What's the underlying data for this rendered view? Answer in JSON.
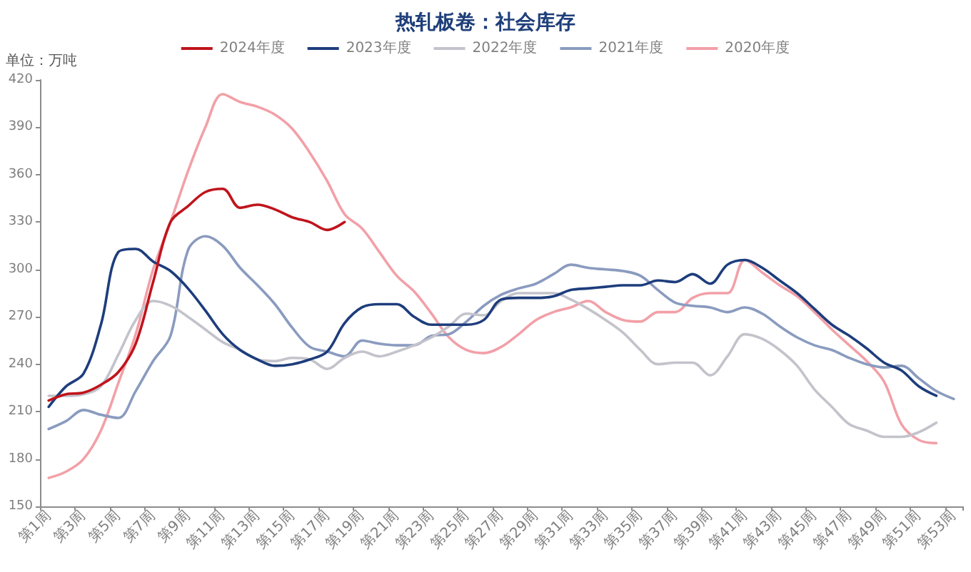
{
  "chart_data": {
    "type": "line",
    "title": "热轧板卷：社会库存",
    "ylabel": "单位：万吨",
    "categories": [
      "第1周",
      null,
      "第3周",
      null,
      "第5周",
      null,
      "第7周",
      null,
      "第9周",
      null,
      "第11周",
      null,
      "第13周",
      null,
      "第15周",
      null,
      "第17周",
      null,
      "第19周",
      null,
      "第21周",
      null,
      "第23周",
      null,
      "第25周",
      null,
      "第27周",
      null,
      "第29周",
      null,
      "第31周",
      null,
      "第33周",
      null,
      "第35周",
      null,
      "第37周",
      null,
      "第39周",
      null,
      "第41周",
      null,
      "第43周",
      null,
      "第45周",
      null,
      "第47周",
      null,
      "第49周",
      null,
      "第51周",
      null,
      "第53周"
    ],
    "series": [
      {
        "name": "2024年度",
        "color": "#c0141c",
        "values": [
          217,
          221,
          222,
          227,
          235,
          253,
          292,
          330,
          340,
          349,
          351,
          339,
          341,
          338,
          333,
          330,
          325,
          330,
          null,
          null,
          null,
          null,
          null,
          null,
          null,
          null,
          null,
          null,
          null,
          null,
          null,
          null,
          null,
          null,
          null,
          null,
          null,
          null,
          null,
          null,
          null,
          null,
          null,
          null,
          null,
          null,
          null,
          null,
          null,
          null,
          null,
          null,
          null
        ]
      },
      {
        "name": "2023年度",
        "color": "#1d3d7c",
        "values": [
          213,
          226,
          234,
          265,
          311,
          313,
          305,
          299,
          288,
          274,
          259,
          249,
          243,
          239,
          240,
          243,
          248,
          266,
          276,
          278,
          278,
          270,
          265,
          265,
          265,
          268,
          281,
          282,
          282,
          283,
          287,
          288,
          289,
          290,
          290,
          293,
          292,
          297,
          291,
          303,
          306,
          301,
          293,
          285,
          275,
          265,
          258,
          250,
          241,
          236,
          226,
          220,
          null
        ]
      },
      {
        "name": "2022年度",
        "color": "#c3c3cb",
        "values": [
          220,
          220,
          221,
          226,
          246,
          268,
          280,
          277,
          270,
          262,
          254,
          249,
          243,
          242,
          244,
          243,
          237,
          244,
          248,
          245,
          248,
          252,
          257,
          264,
          272,
          271,
          280,
          285,
          285,
          285,
          281,
          275,
          268,
          260,
          249,
          240,
          241,
          241,
          233,
          245,
          259,
          256,
          249,
          239,
          224,
          213,
          202,
          198,
          194,
          194,
          197,
          203,
          null
        ]
      },
      {
        "name": "2021年度",
        "color": "#8a9bbf",
        "values": [
          199,
          204,
          211,
          208,
          206,
          223,
          242,
          258,
          312,
          321,
          315,
          301,
          290,
          278,
          263,
          251,
          248,
          245,
          255,
          253,
          252,
          252,
          258,
          259,
          267,
          277,
          284,
          288,
          291,
          297,
          303,
          301,
          300,
          299,
          296,
          287,
          279,
          277,
          276,
          273,
          276,
          272,
          264,
          257,
          252,
          249,
          244,
          240,
          238,
          239,
          231,
          223,
          218
        ]
      },
      {
        "name": "2020年度",
        "color": "#f2a0a8",
        "values": [
          168,
          172,
          180,
          198,
          228,
          259,
          300,
          330,
          362,
          390,
          411,
          406,
          403,
          398,
          389,
          374,
          356,
          335,
          326,
          311,
          296,
          286,
          272,
          257,
          249,
          247,
          251,
          259,
          268,
          273,
          276,
          280,
          273,
          268,
          267,
          273,
          273,
          282,
          285,
          285,
          306,
          298,
          290,
          283,
          273,
          262,
          252,
          242,
          229,
          202,
          192,
          190,
          null
        ]
      }
    ],
    "ylim": [
      150,
      420
    ],
    "yticks": [
      150,
      180,
      210,
      240,
      270,
      300,
      330,
      360,
      390,
      420
    ],
    "legend": "top",
    "grid": false,
    "marker": "none",
    "line_style": "solid"
  }
}
